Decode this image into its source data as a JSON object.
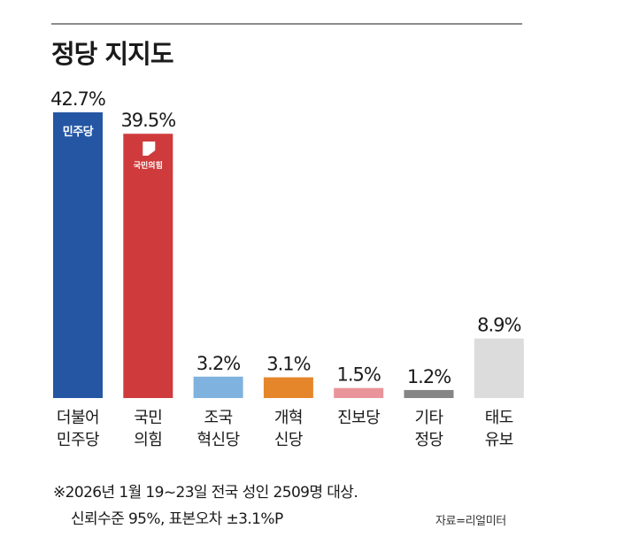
{
  "title": "정당 지지도",
  "chart_data": {
    "type": "bar",
    "categories": [
      [
        "더불어",
        "민주당"
      ],
      [
        "국민",
        "의힘"
      ],
      [
        "조국",
        "혁신당"
      ],
      [
        "개혁",
        "신당"
      ],
      [
        "진보당"
      ],
      [
        "기타",
        "정당"
      ],
      [
        "태도",
        "유보"
      ]
    ],
    "values": [
      42.7,
      39.5,
      3.2,
      3.1,
      1.5,
      1.2,
      8.9
    ],
    "value_labels": [
      "42.7%",
      "39.5%",
      "3.2%",
      "3.1%",
      "1.5%",
      "1.2%",
      "8.9%"
    ],
    "colors": [
      "#2456a4",
      "#cf3b3c",
      "#7fb2de",
      "#e5862a",
      "#e8949a",
      "#858585",
      "#dcdcdc"
    ],
    "ylim": [
      0,
      42.7
    ],
    "grid": false,
    "logos": {
      "democratic": "민주당",
      "ppp": "국민의힘"
    }
  },
  "footnote": {
    "line1": "※2026년 1월 19~23일 전국 성인 2509명 대상.",
    "line2": "신뢰수준 95%, 표본오차 ±3.1%P",
    "source": "자료=리얼미터"
  }
}
